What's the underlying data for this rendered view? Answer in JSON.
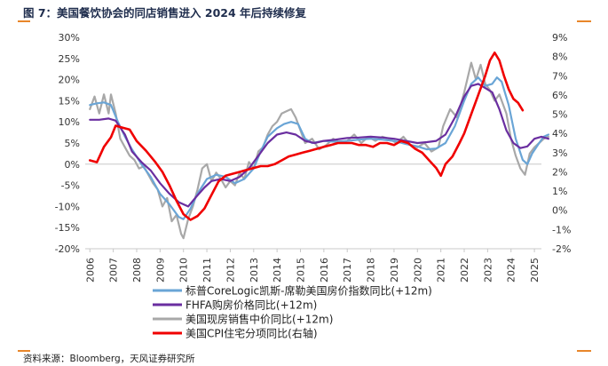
{
  "header": {
    "title": "图 7：美国餐饮协会的同店销售进入 2024 年后持续修复"
  },
  "footer": {
    "source": "资料来源：Bloomberg，天风证券研究所"
  },
  "chart_data": {
    "type": "line",
    "title": "图 7：美国餐饮协会的同店销售进入 2024 年后持续修复",
    "x_range": [
      2005.8,
      2025.3
    ],
    "x_ticks": [
      "2006",
      "2007",
      "2008",
      "2009",
      "2010",
      "2011",
      "2012",
      "2013",
      "2014",
      "2015",
      "2016",
      "2017",
      "2018",
      "2019",
      "2020",
      "2021",
      "2022",
      "2023",
      "2024",
      "2025"
    ],
    "y_left": {
      "range": [
        -20,
        30
      ],
      "ticks": [
        "30%",
        "25%",
        "20%",
        "15%",
        "10%",
        "5%",
        "0%",
        "-5%",
        "-10%",
        "-15%",
        "-20%"
      ],
      "values": [
        30,
        25,
        20,
        15,
        10,
        5,
        0,
        -5,
        -10,
        -15,
        -20
      ]
    },
    "y_right": {
      "range": [
        -2,
        9
      ],
      "ticks": [
        "9%",
        "8%",
        "7%",
        "6%",
        "5%",
        "4%",
        "3%",
        "2%",
        "1%",
        "0%",
        "-1%",
        "-2%"
      ],
      "values": [
        9,
        8,
        7,
        6,
        5,
        4,
        3,
        2,
        1,
        0,
        -1,
        -2
      ]
    },
    "series": [
      {
        "name": "标普CoreLogic凯斯-席勒美国房价指数同比(+12m)",
        "axis": "left",
        "color": "#6aa5d6",
        "points": [
          [
            2006.0,
            14.0
          ],
          [
            2006.3,
            14.4
          ],
          [
            2006.6,
            14.6
          ],
          [
            2006.9,
            14.0
          ],
          [
            2007.2,
            10.0
          ],
          [
            2007.5,
            6.5
          ],
          [
            2007.8,
            3.5
          ],
          [
            2008.2,
            0.0
          ],
          [
            2008.6,
            -3.0
          ],
          [
            2009.0,
            -7.0
          ],
          [
            2009.4,
            -9.5
          ],
          [
            2009.8,
            -12.5
          ],
          [
            2010.0,
            -13.0
          ],
          [
            2010.3,
            -10.5
          ],
          [
            2010.6,
            -7.0
          ],
          [
            2011.0,
            -3.5
          ],
          [
            2011.4,
            -2.5
          ],
          [
            2011.8,
            -3.0
          ],
          [
            2012.2,
            -4.5
          ],
          [
            2012.6,
            -3.5
          ],
          [
            2013.0,
            -1.0
          ],
          [
            2013.3,
            3.0
          ],
          [
            2013.6,
            6.5
          ],
          [
            2014.0,
            8.5
          ],
          [
            2014.3,
            9.5
          ],
          [
            2014.6,
            10.0
          ],
          [
            2014.9,
            9.5
          ],
          [
            2015.2,
            6.0
          ],
          [
            2015.5,
            5.0
          ],
          [
            2016.0,
            5.5
          ],
          [
            2016.5,
            5.3
          ],
          [
            2017.0,
            5.5
          ],
          [
            2017.5,
            5.8
          ],
          [
            2018.0,
            6.0
          ],
          [
            2018.5,
            5.8
          ],
          [
            2019.0,
            5.5
          ],
          [
            2019.5,
            4.8
          ],
          [
            2020.0,
            4.2
          ],
          [
            2020.4,
            3.5
          ],
          [
            2020.8,
            3.7
          ],
          [
            2021.2,
            5.0
          ],
          [
            2021.6,
            9.0
          ],
          [
            2022.0,
            15.0
          ],
          [
            2022.3,
            19.0
          ],
          [
            2022.6,
            20.5
          ],
          [
            2022.9,
            18.5
          ],
          [
            2023.2,
            19.0
          ],
          [
            2023.4,
            20.5
          ],
          [
            2023.6,
            19.5
          ],
          [
            2023.9,
            14.0
          ],
          [
            2024.2,
            6.0
          ],
          [
            2024.5,
            1.0
          ],
          [
            2024.7,
            0.0
          ],
          [
            2024.9,
            2.5
          ],
          [
            2025.2,
            5.0
          ],
          [
            2025.4,
            6.5
          ],
          [
            2025.6,
            7.0
          ]
        ]
      },
      {
        "name": "FHFA购房价格同比(+12m)",
        "axis": "left",
        "color": "#6a2ea0",
        "points": [
          [
            2006.0,
            10.5
          ],
          [
            2006.4,
            10.5
          ],
          [
            2006.8,
            10.8
          ],
          [
            2007.1,
            10.3
          ],
          [
            2007.5,
            7.0
          ],
          [
            2007.8,
            3.0
          ],
          [
            2008.2,
            0.5
          ],
          [
            2008.6,
            -1.5
          ],
          [
            2009.0,
            -4.5
          ],
          [
            2009.4,
            -7.0
          ],
          [
            2009.8,
            -9.0
          ],
          [
            2010.2,
            -10.0
          ],
          [
            2010.5,
            -8.0
          ],
          [
            2010.9,
            -5.5
          ],
          [
            2011.2,
            -4.0
          ],
          [
            2011.6,
            -3.5
          ],
          [
            2012.0,
            -4.0
          ],
          [
            2012.4,
            -3.0
          ],
          [
            2012.8,
            -1.0
          ],
          [
            2013.2,
            2.0
          ],
          [
            2013.6,
            5.0
          ],
          [
            2014.0,
            7.0
          ],
          [
            2014.4,
            7.5
          ],
          [
            2014.8,
            7.0
          ],
          [
            2015.2,
            5.5
          ],
          [
            2015.6,
            5.0
          ],
          [
            2016.0,
            5.5
          ],
          [
            2016.5,
            5.8
          ],
          [
            2017.0,
            6.2
          ],
          [
            2017.5,
            6.3
          ],
          [
            2018.0,
            6.5
          ],
          [
            2018.5,
            6.3
          ],
          [
            2019.0,
            6.0
          ],
          [
            2019.5,
            5.5
          ],
          [
            2020.0,
            5.0
          ],
          [
            2020.4,
            5.2
          ],
          [
            2020.8,
            5.5
          ],
          [
            2021.2,
            7.0
          ],
          [
            2021.6,
            11.0
          ],
          [
            2022.0,
            16.0
          ],
          [
            2022.3,
            18.5
          ],
          [
            2022.6,
            19.0
          ],
          [
            2022.9,
            18.0
          ],
          [
            2023.2,
            17.0
          ],
          [
            2023.5,
            13.0
          ],
          [
            2023.8,
            8.0
          ],
          [
            2024.1,
            5.0
          ],
          [
            2024.4,
            3.8
          ],
          [
            2024.7,
            4.2
          ],
          [
            2025.0,
            6.0
          ],
          [
            2025.3,
            6.5
          ],
          [
            2025.6,
            6.0
          ]
        ]
      },
      {
        "name": "美国现房销售中价同比(+12m)",
        "axis": "left",
        "color": "#a8a8a8",
        "points": [
          [
            2006.0,
            13.0
          ],
          [
            2006.2,
            16.0
          ],
          [
            2006.4,
            12.0
          ],
          [
            2006.6,
            16.5
          ],
          [
            2006.8,
            12.0
          ],
          [
            2006.9,
            16.5
          ],
          [
            2007.1,
            12.0
          ],
          [
            2007.3,
            6.0
          ],
          [
            2007.5,
            4.0
          ],
          [
            2007.7,
            2.0
          ],
          [
            2007.9,
            1.0
          ],
          [
            2008.1,
            -1.0
          ],
          [
            2008.3,
            -0.5
          ],
          [
            2008.5,
            -2.5
          ],
          [
            2008.7,
            -4.5
          ],
          [
            2008.9,
            -6.0
          ],
          [
            2009.1,
            -10.0
          ],
          [
            2009.3,
            -8.0
          ],
          [
            2009.5,
            -13.5
          ],
          [
            2009.7,
            -12.0
          ],
          [
            2009.9,
            -16.5
          ],
          [
            2010.0,
            -17.5
          ],
          [
            2010.2,
            -13.0
          ],
          [
            2010.4,
            -10.0
          ],
          [
            2010.6,
            -6.0
          ],
          [
            2010.8,
            -1.0
          ],
          [
            2011.0,
            0.0
          ],
          [
            2011.2,
            -4.0
          ],
          [
            2011.4,
            -2.0
          ],
          [
            2011.6,
            -3.5
          ],
          [
            2011.8,
            -5.5
          ],
          [
            2012.0,
            -4.0
          ],
          [
            2012.2,
            -5.0
          ],
          [
            2012.4,
            -2.0
          ],
          [
            2012.6,
            -3.5
          ],
          [
            2012.8,
            0.5
          ],
          [
            2013.0,
            -1.0
          ],
          [
            2013.2,
            3.0
          ],
          [
            2013.4,
            4.0
          ],
          [
            2013.6,
            7.0
          ],
          [
            2013.8,
            9.0
          ],
          [
            2014.0,
            10.0
          ],
          [
            2014.2,
            12.0
          ],
          [
            2014.4,
            12.5
          ],
          [
            2014.6,
            13.0
          ],
          [
            2014.8,
            11.0
          ],
          [
            2015.0,
            8.0
          ],
          [
            2015.2,
            5.0
          ],
          [
            2015.5,
            6.0
          ],
          [
            2015.8,
            3.5
          ],
          [
            2016.1,
            4.5
          ],
          [
            2016.4,
            6.0
          ],
          [
            2016.7,
            5.0
          ],
          [
            2017.0,
            5.5
          ],
          [
            2017.3,
            7.0
          ],
          [
            2017.6,
            5.0
          ],
          [
            2017.9,
            6.5
          ],
          [
            2018.2,
            5.5
          ],
          [
            2018.5,
            6.5
          ],
          [
            2018.8,
            6.0
          ],
          [
            2019.1,
            5.0
          ],
          [
            2019.4,
            6.5
          ],
          [
            2019.7,
            4.5
          ],
          [
            2020.0,
            4.0
          ],
          [
            2020.3,
            5.0
          ],
          [
            2020.6,
            3.0
          ],
          [
            2020.9,
            4.0
          ],
          [
            2021.1,
            9.0
          ],
          [
            2021.4,
            13.0
          ],
          [
            2021.7,
            11.0
          ],
          [
            2022.0,
            17.0
          ],
          [
            2022.3,
            24.0
          ],
          [
            2022.5,
            20.0
          ],
          [
            2022.7,
            23.5
          ],
          [
            2022.9,
            19.0
          ],
          [
            2023.1,
            17.5
          ],
          [
            2023.3,
            15.0
          ],
          [
            2023.5,
            16.5
          ],
          [
            2023.8,
            12.0
          ],
          [
            2024.0,
            6.0
          ],
          [
            2024.2,
            2.0
          ],
          [
            2024.4,
            -1.0
          ],
          [
            2024.6,
            -2.5
          ],
          [
            2024.8,
            2.5
          ],
          [
            2025.0,
            4.0
          ],
          [
            2025.2,
            5.0
          ],
          [
            2025.4,
            6.0
          ],
          [
            2025.6,
            6.5
          ]
        ]
      },
      {
        "name": "美国CPI住宅分项同比(右轴)",
        "axis": "right",
        "color": "#f00000",
        "points": [
          [
            2006.0,
            2.6
          ],
          [
            2006.3,
            2.5
          ],
          [
            2006.6,
            3.3
          ],
          [
            2006.9,
            3.8
          ],
          [
            2007.1,
            4.4
          ],
          [
            2007.4,
            4.3
          ],
          [
            2007.7,
            4.2
          ],
          [
            2008.0,
            3.6
          ],
          [
            2008.4,
            3.1
          ],
          [
            2008.8,
            2.5
          ],
          [
            2009.1,
            2.0
          ],
          [
            2009.4,
            1.3
          ],
          [
            2009.7,
            0.5
          ],
          [
            2010.0,
            -0.2
          ],
          [
            2010.3,
            -0.5
          ],
          [
            2010.6,
            -0.3
          ],
          [
            2010.9,
            0.1
          ],
          [
            2011.2,
            0.8
          ],
          [
            2011.5,
            1.5
          ],
          [
            2011.8,
            1.8
          ],
          [
            2012.1,
            1.9
          ],
          [
            2012.4,
            2.0
          ],
          [
            2012.7,
            2.1
          ],
          [
            2013.0,
            2.2
          ],
          [
            2013.3,
            2.3
          ],
          [
            2013.6,
            2.3
          ],
          [
            2013.9,
            2.4
          ],
          [
            2014.2,
            2.6
          ],
          [
            2014.5,
            2.8
          ],
          [
            2014.8,
            2.9
          ],
          [
            2015.1,
            3.0
          ],
          [
            2015.4,
            3.1
          ],
          [
            2015.7,
            3.2
          ],
          [
            2016.0,
            3.3
          ],
          [
            2016.3,
            3.4
          ],
          [
            2016.6,
            3.5
          ],
          [
            2016.9,
            3.5
          ],
          [
            2017.2,
            3.5
          ],
          [
            2017.5,
            3.4
          ],
          [
            2017.8,
            3.4
          ],
          [
            2018.1,
            3.3
          ],
          [
            2018.4,
            3.5
          ],
          [
            2018.7,
            3.5
          ],
          [
            2019.0,
            3.4
          ],
          [
            2019.3,
            3.6
          ],
          [
            2019.6,
            3.5
          ],
          [
            2019.9,
            3.2
          ],
          [
            2020.2,
            3.0
          ],
          [
            2020.5,
            2.6
          ],
          [
            2020.8,
            2.2
          ],
          [
            2021.0,
            1.8
          ],
          [
            2021.2,
            2.4
          ],
          [
            2021.5,
            2.8
          ],
          [
            2021.8,
            3.5
          ],
          [
            2022.0,
            4.0
          ],
          [
            2022.3,
            5.0
          ],
          [
            2022.6,
            6.0
          ],
          [
            2022.9,
            7.0
          ],
          [
            2023.1,
            7.8
          ],
          [
            2023.3,
            8.2
          ],
          [
            2023.5,
            7.8
          ],
          [
            2023.7,
            7.0
          ],
          [
            2023.9,
            6.3
          ],
          [
            2024.1,
            5.8
          ],
          [
            2024.3,
            5.6
          ],
          [
            2024.5,
            5.2
          ]
        ]
      }
    ]
  }
}
